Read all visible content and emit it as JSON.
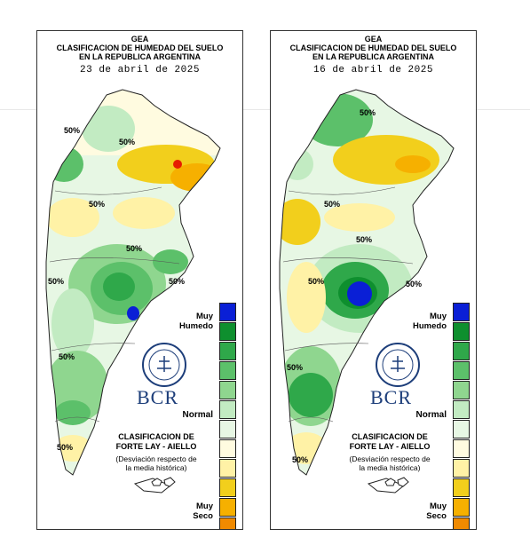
{
  "maps": [
    {
      "header_line1": "GEA",
      "header_line2": "CLASIFICACION DE HUMEDAD DEL SUELO",
      "header_line3": "EN LA REPUBLICA ARGENTINA",
      "date": "23 de abril de 2025",
      "contour_labels": [
        "50%",
        "50%",
        "50%",
        "50%",
        "50%",
        "50%",
        "50%",
        "50%"
      ]
    },
    {
      "header_line1": "GEA",
      "header_line2": "CLASIFICACION DE HUMEDAD DEL SUELO",
      "header_line3": "EN LA REPUBLICA ARGENTINA",
      "date": "16 de abril de 2025",
      "contour_labels": [
        "50%",
        "50%",
        "50%",
        "50%",
        "50%",
        "50%",
        "50%"
      ]
    }
  ],
  "legend": {
    "top_label_line1": "Muy",
    "top_label_line2": "Humedo",
    "mid_label": "Normal",
    "bottom_label_line1": "Muy",
    "bottom_label_line2": "Seco",
    "colors": [
      "#0a1fd6",
      "#0e8f2e",
      "#2fa84a",
      "#5cc06a",
      "#8fd68f",
      "#c2ebc2",
      "#e7f7e4",
      "#fffbe0",
      "#fff2a6",
      "#f2cf1c",
      "#f6b000",
      "#f08a00",
      "#e61c00"
    ]
  },
  "classification": {
    "line1": "CLASIFICACION DE",
    "line2": "FORTE LAY - AIELLO",
    "note_line1": "(Desviación respecto de",
    "note_line2": "la media histórica)"
  },
  "logo": {
    "text": "BCR"
  }
}
